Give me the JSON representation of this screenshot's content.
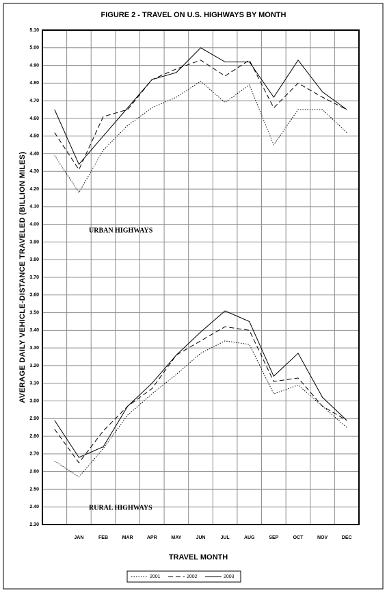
{
  "chart_data": {
    "type": "line",
    "title": "FIGURE 2 - TRAVEL ON U.S. HIGHWAYS BY MONTH",
    "y_label": "AVERAGE DAILY VEHICLE-DISTANCE TRAVELED (BILLION MILES)",
    "x_label": "TRAVEL MONTH",
    "annotations": [
      {
        "text": "URBAN HIGHWAYS",
        "group": "urban"
      },
      {
        "text": "RURAL HIGHWAYS",
        "group": "rural"
      }
    ],
    "categories": [
      null,
      "JAN",
      "FEB",
      "MAR",
      "APR",
      "MAY",
      "JUN",
      "JUL",
      "AUG",
      "SEP",
      "OCT",
      "NOV",
      "DEC"
    ],
    "series": [
      {
        "name": "2001",
        "color": "#000000",
        "dash": "dotted",
        "urban": [
          4.39,
          4.18,
          4.42,
          4.56,
          4.66,
          4.72,
          4.81,
          4.69,
          4.79,
          4.45,
          4.65,
          4.65,
          4.52
        ],
        "rural": [
          2.66,
          2.57,
          2.73,
          2.92,
          3.04,
          3.15,
          3.27,
          3.34,
          3.32,
          3.04,
          3.09,
          2.97,
          2.85
        ]
      },
      {
        "name": "2002",
        "color": "#000000",
        "dash": "dashed",
        "urban": [
          4.52,
          4.31,
          4.61,
          4.65,
          4.82,
          4.88,
          4.93,
          4.84,
          4.93,
          4.66,
          4.8,
          4.72,
          4.65
        ],
        "rural": [
          2.84,
          2.65,
          2.83,
          2.97,
          3.07,
          3.26,
          3.34,
          3.42,
          3.4,
          3.11,
          3.13,
          2.97,
          2.89
        ]
      },
      {
        "name": "2003",
        "color": "#000000",
        "dash": "solid",
        "urban": [
          4.65,
          4.34,
          4.5,
          4.66,
          4.82,
          4.86,
          5.0,
          4.92,
          4.92,
          4.72,
          4.93,
          4.75,
          4.65
        ],
        "rural": [
          2.89,
          2.68,
          2.74,
          2.97,
          3.1,
          3.26,
          3.39,
          3.51,
          3.45,
          3.14,
          3.27,
          3.02,
          2.89
        ]
      }
    ],
    "ylim": [
      2.3,
      5.1
    ],
    "yticks": [
      {
        "value": 2.3,
        "label": "2.30"
      },
      {
        "value": 2.4,
        "label": "2.40"
      },
      {
        "value": 2.5,
        "label": "2.50"
      },
      {
        "value": 2.6,
        "label": "2.60"
      },
      {
        "value": 2.7,
        "label": "2.70"
      },
      {
        "value": 2.8,
        "label": "2.80"
      },
      {
        "value": 2.9,
        "label": "2.90"
      },
      {
        "value": 3.0,
        "label": "3.00"
      },
      {
        "value": 3.1,
        "label": "3.10"
      },
      {
        "value": 3.2,
        "label": "3.20"
      },
      {
        "value": 3.3,
        "label": "3.30"
      },
      {
        "value": 3.4,
        "label": "3.40"
      },
      {
        "value": 3.5,
        "label": "3.50"
      },
      {
        "value": 3.6,
        "label": "3.60"
      },
      {
        "value": 3.7,
        "label": "3.70"
      },
      {
        "value": 3.8,
        "label": "3.80"
      },
      {
        "value": 3.9,
        "label": "3.90"
      },
      {
        "value": 4.0,
        "label": "4.00"
      },
      {
        "value": 4.1,
        "label": "4.10"
      },
      {
        "value": 4.2,
        "label": "4.20"
      },
      {
        "value": 4.3,
        "label": "4.30"
      },
      {
        "value": 4.4,
        "label": "4.40"
      },
      {
        "value": 4.5,
        "label": "4.50"
      },
      {
        "value": 4.6,
        "label": "4.60"
      },
      {
        "value": 4.7,
        "label": "4.70"
      },
      {
        "value": 4.8,
        "label": "4.80"
      },
      {
        "value": 4.9,
        "label": "4.90"
      },
      {
        "value": 5.0,
        "label": "5.00"
      },
      {
        "value": 5.1,
        "label": "5.10"
      }
    ],
    "grid": true,
    "legend": "bottom"
  }
}
